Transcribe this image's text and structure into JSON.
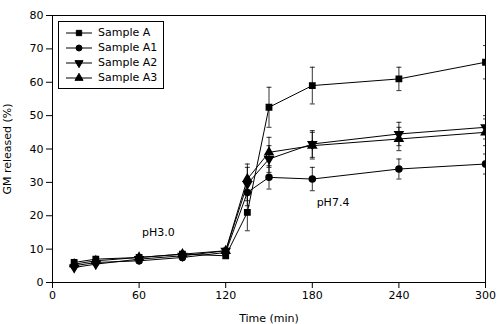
{
  "chart_data": {
    "type": "line",
    "xlabel": "Time (min)",
    "ylabel": "GM released (%)",
    "xlim": [
      0,
      300
    ],
    "ylim": [
      0,
      80
    ],
    "xticks": [
      0,
      60,
      120,
      180,
      240,
      300
    ],
    "yticks": [
      0,
      10,
      20,
      30,
      40,
      50,
      60,
      70,
      80
    ],
    "grid": false,
    "legend": "upper left",
    "annotations": [
      {
        "text": "pH3.0",
        "x": 62,
        "y": 14
      },
      {
        "text": "pH7.4",
        "x": 183,
        "y": 23
      }
    ],
    "x": [
      15,
      30,
      60,
      90,
      120,
      135,
      150,
      180,
      240,
      300
    ],
    "series": [
      {
        "name": "Sample A",
        "color": "#000000",
        "marker": "square",
        "line_style": "solid",
        "values": [
          6.0,
          7.0,
          7.5,
          8.5,
          8.0,
          21.0,
          52.5,
          59.0,
          61.0,
          66.0
        ],
        "yerr": [
          0.4,
          0.4,
          0.8,
          0.8,
          0.8,
          5.5,
          6.0,
          5.5,
          3.5,
          5.0
        ]
      },
      {
        "name": "Sample A1",
        "color": "#000000",
        "marker": "circle",
        "line_style": "solid",
        "values": [
          5.0,
          6.0,
          6.5,
          7.5,
          9.0,
          27.0,
          31.5,
          31.0,
          34.0,
          35.5
        ],
        "yerr": [
          0.4,
          0.4,
          0.8,
          0.8,
          0.8,
          4.0,
          3.5,
          3.5,
          3.0,
          3.0
        ]
      },
      {
        "name": "Sample A2",
        "color": "#000000",
        "marker": "triangle-down",
        "line_style": "solid",
        "values": [
          4.5,
          5.5,
          7.0,
          8.0,
          9.5,
          29.5,
          37.0,
          41.5,
          44.5,
          46.5
        ],
        "yerr": [
          0.4,
          0.4,
          0.8,
          0.8,
          0.8,
          5.0,
          4.0,
          4.0,
          3.5,
          3.5
        ]
      },
      {
        "name": "Sample A3",
        "color": "#000000",
        "marker": "triangle-up",
        "line_style": "solid",
        "values": [
          5.5,
          6.5,
          7.5,
          8.5,
          9.5,
          31.0,
          39.0,
          41.0,
          43.0,
          45.0
        ],
        "yerr": [
          0.4,
          0.4,
          0.8,
          0.8,
          0.8,
          4.5,
          4.5,
          4.0,
          3.5,
          4.0
        ]
      }
    ]
  }
}
